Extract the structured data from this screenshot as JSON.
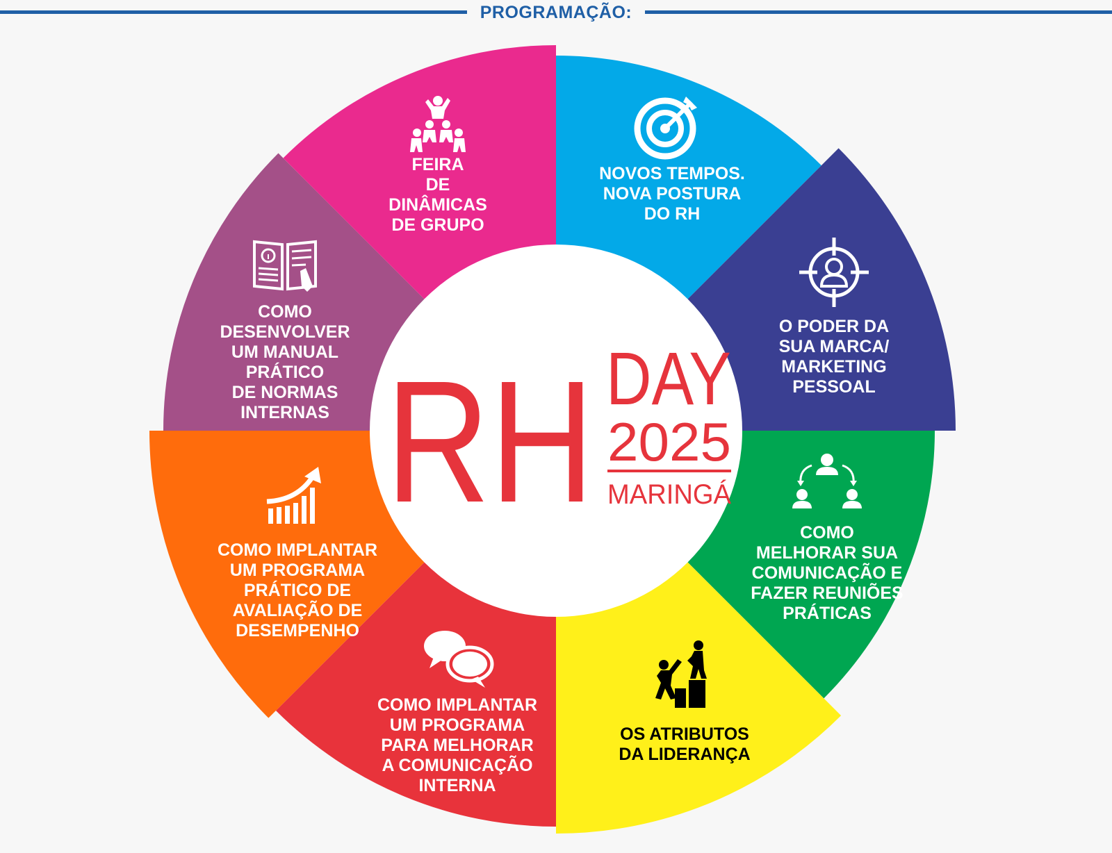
{
  "header": {
    "title": "PROGRAMAÇÃO:"
  },
  "colors": {
    "header": "#1f5fa6",
    "logo_red": "#e6343c",
    "background": "#f7f7f7"
  },
  "logo": {
    "rh": "RH",
    "day": "DAY",
    "year": "2025",
    "city": "MARINGÁ"
  },
  "segments": [
    {
      "id": "novos-tempos",
      "icon": "target-dart-icon",
      "color": "#03a9e8",
      "text_color": "#ffffff",
      "lines": [
        "NOVOS TEMPOS.",
        "NOVA POSTURA",
        "DO RH"
      ]
    },
    {
      "id": "poder-marca",
      "icon": "crosshair-person-icon",
      "color": "#3a3f92",
      "text_color": "#ffffff",
      "lines": [
        "O PODER DA",
        "SUA MARCA/",
        "MARKETING",
        "PESSOAL"
      ]
    },
    {
      "id": "comunicacao-reunioes",
      "icon": "team-communication-icon",
      "color": "#00a651",
      "text_color": "#ffffff",
      "lines": [
        "COMO",
        "MELHORAR SUA",
        "COMUNICAÇÃO E",
        "FAZER REUNIÕES",
        "PRÁTICAS"
      ]
    },
    {
      "id": "atributos-lideranca",
      "icon": "leader-helping-climb-icon",
      "color": "#fff01a",
      "text_color": "#000000",
      "lines": [
        "OS ATRIBUTOS",
        "DA LIDERANÇA"
      ]
    },
    {
      "id": "comunicacao-interna",
      "icon": "speech-bubbles-icon",
      "color": "#e8333b",
      "text_color": "#ffffff",
      "lines": [
        "COMO IMPLANTAR",
        "UM PROGRAMA",
        "PARA MELHORAR",
        "A COMUNICAÇÃO",
        "INTERNA"
      ]
    },
    {
      "id": "avaliacao-desempenho",
      "icon": "growth-chart-arrow-icon",
      "color": "#ff6c0c",
      "text_color": "#ffffff",
      "lines": [
        "COMO IMPLANTAR",
        "UM PROGRAMA",
        "PRÁTICO DE",
        "AVALIAÇÃO DE",
        "DESEMPENHO"
      ]
    },
    {
      "id": "manual-normas",
      "icon": "manual-book-icon",
      "color": "#a45088",
      "text_color": "#ffffff",
      "lines": [
        "COMO",
        "DESENVOLVER",
        "UM MANUAL",
        "PRÁTICO",
        "DE NORMAS",
        "INTERNAS"
      ]
    },
    {
      "id": "feira-dinamicas",
      "icon": "group-pyramid-icon",
      "color": "#ea2a8e",
      "text_color": "#ffffff",
      "lines": [
        "FEIRA",
        "DE",
        "DINÂMICAS",
        "DE GRUPO"
      ]
    }
  ]
}
